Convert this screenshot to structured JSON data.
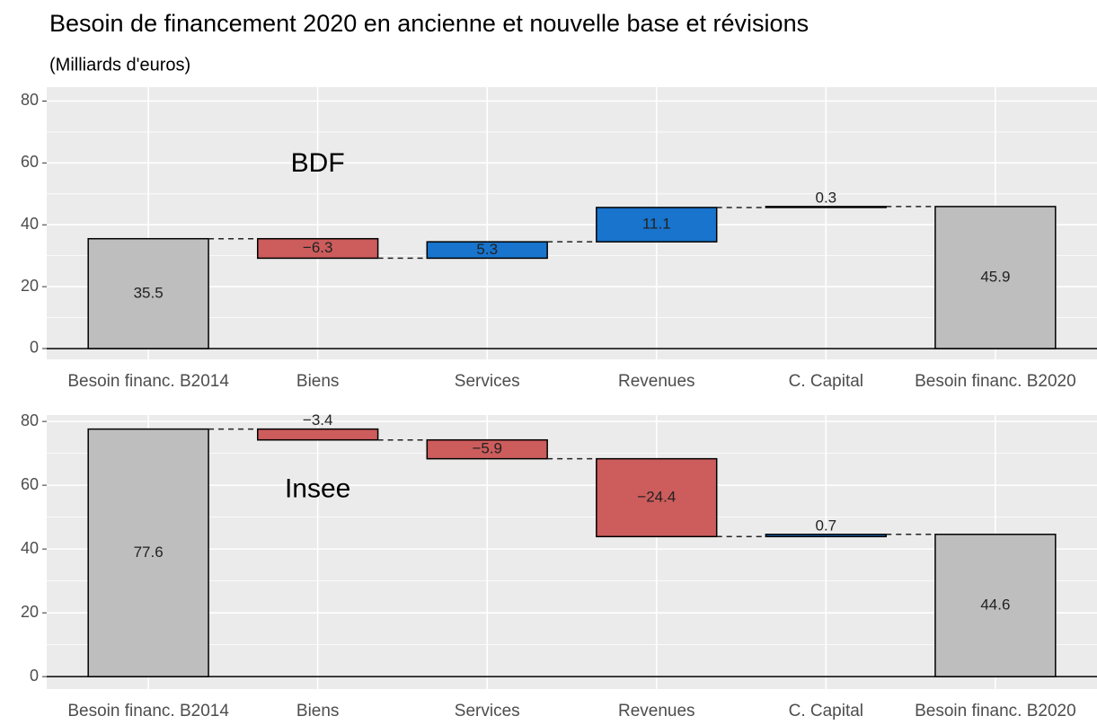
{
  "chart_data": [
    {
      "type": "waterfall",
      "title": "Besoin de financement 2020 en ancienne et nouvelle base et révisions",
      "subtitle": "(Milliards d'euros)",
      "annotation": "BDF",
      "categories": [
        "Besoin financ. B2014",
        "Biens",
        "Services",
        "Revenues",
        "C. Capital",
        "Besoin financ. B2020"
      ],
      "measure": [
        "absolute",
        "relative",
        "relative",
        "relative",
        "relative",
        "total"
      ],
      "values": [
        35.5,
        -6.3,
        5.3,
        11.1,
        0.3,
        45.9
      ],
      "value_labels": [
        "35.5",
        "−6.3",
        "5.3",
        "11.1",
        "0.3",
        "45.9"
      ],
      "colors": {
        "increase": "#1874cd",
        "decrease": "#cd5c5c",
        "total": "#bebebe"
      },
      "ylim": [
        -3.5,
        84.5
      ],
      "yticks": [
        0,
        20,
        40,
        60,
        80
      ],
      "minor_yticks": [
        10,
        30,
        50,
        70
      ],
      "grid": true
    },
    {
      "type": "waterfall",
      "annotation": "Insee",
      "categories": [
        "Besoin financ. B2014",
        "Biens",
        "Services",
        "Revenues",
        "C. Capital",
        "Besoin financ. B2020"
      ],
      "measure": [
        "absolute",
        "relative",
        "relative",
        "relative",
        "relative",
        "total"
      ],
      "values": [
        77.6,
        -3.4,
        -5.9,
        -24.4,
        0.7,
        44.6
      ],
      "value_labels": [
        "77.6",
        "−3.4",
        "−5.9",
        "−24.4",
        "0.7",
        "44.6"
      ],
      "colors": {
        "increase": "#1874cd",
        "decrease": "#cd5c5c",
        "total": "#bebebe"
      },
      "ylim": [
        -3.9,
        82
      ],
      "yticks": [
        0,
        20,
        40,
        60,
        80
      ],
      "minor_yticks": [
        10,
        30,
        50,
        70
      ],
      "grid": true
    }
  ]
}
